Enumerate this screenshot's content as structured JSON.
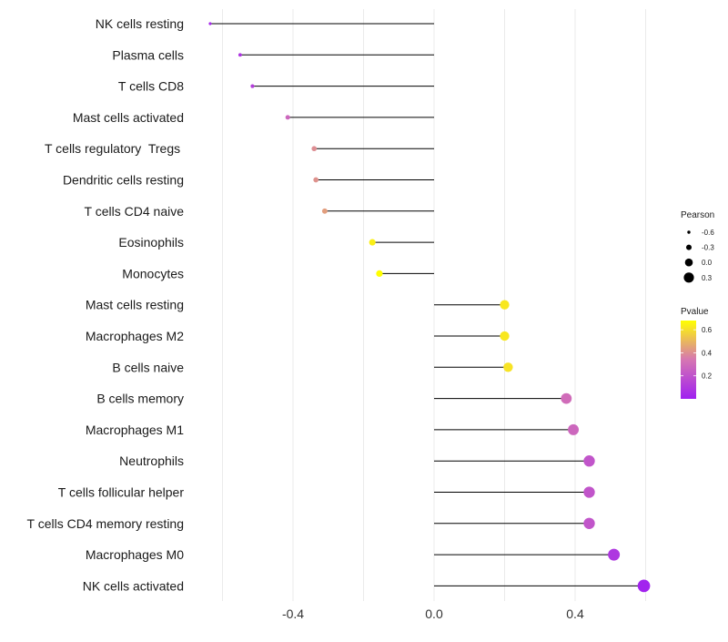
{
  "chart_data": {
    "type": "lollipop",
    "title": "",
    "xlabel": "",
    "ylabel": "",
    "xlim": [
      -0.63,
      0.63
    ],
    "x_ticks": [
      -0.4,
      0.0,
      0.4
    ],
    "x_tick_labels": [
      "-0.4",
      "0.0",
      "0.4"
    ],
    "categories": [
      "NK cells resting",
      "Plasma cells",
      "T cells CD8",
      "Mast cells activated",
      "T cells regulatory  Tregs ",
      "Dendritic cells resting",
      "T cells CD4 naive",
      "Eosinophils",
      "Monocytes",
      "Mast cells resting",
      "Macrophages M2",
      "B cells naive",
      "B cells memory",
      "Macrophages M1",
      "Neutrophils",
      "T cells follicular helper",
      "T cells CD4 memory resting",
      "Macrophages M0",
      "NK cells activated"
    ],
    "pearson": [
      -0.635,
      -0.55,
      -0.515,
      -0.415,
      -0.34,
      -0.335,
      -0.31,
      -0.175,
      -0.155,
      0.2,
      0.2,
      0.21,
      0.375,
      0.395,
      0.44,
      0.44,
      0.44,
      0.51,
      0.595
    ],
    "pvalue": [
      0.03,
      0.08,
      0.12,
      0.28,
      0.4,
      0.41,
      0.44,
      0.64,
      0.68,
      0.62,
      0.62,
      0.61,
      0.3,
      0.28,
      0.21,
      0.21,
      0.21,
      0.09,
      0.01
    ],
    "size_legend": {
      "title": "Pearson",
      "labels": [
        "-0.6",
        "-0.3",
        "0.0",
        "0.3"
      ],
      "values": [
        -0.6,
        -0.3,
        0.0,
        0.3
      ]
    },
    "color_legend": {
      "title": "Pvalue",
      "labels": [
        "0.6",
        "0.4",
        "0.2"
      ],
      "values": [
        0.6,
        0.4,
        0.2
      ],
      "range": [
        0.0,
        0.68
      ],
      "low_color": "#a020f0",
      "high_color": "#ffff00"
    },
    "segment_color": "#000000",
    "grid": true
  }
}
